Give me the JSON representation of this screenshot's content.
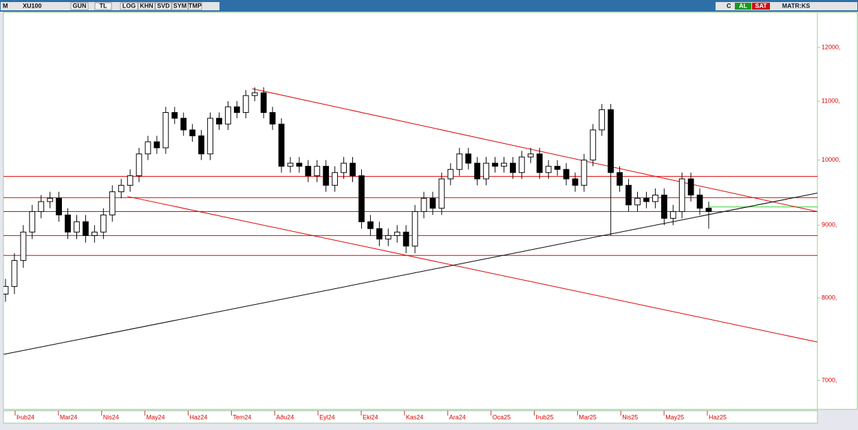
{
  "toolbar": {
    "menu": "M",
    "symbol": "XU100",
    "buttons": [
      "GUN",
      "TL",
      "LOG",
      "KHN",
      "SVD",
      "SYM",
      "TMP"
    ],
    "refresh": "C",
    "buy": "AL",
    "sell": "SAT",
    "brand": "MATR:KS"
  },
  "chart_data": {
    "type": "candlestick",
    "x_labels": [
      "Þub24",
      "Mar24",
      "Nis24",
      "May24",
      "Haz24",
      "Tem24",
      "Aðu24",
      "Eyl24",
      "Eki24",
      "Kas24",
      "Ara24",
      "Oca25",
      "Þub25",
      "Mar25",
      "Nis25",
      "May25",
      "Haz25"
    ],
    "open": [
      8050,
      8150,
      8500,
      8900,
      9200,
      9350,
      9400,
      9150,
      8900,
      9050,
      8850,
      8900,
      9150,
      9500,
      9600,
      9750,
      10100,
      10300,
      10200,
      10800,
      10700,
      10500,
      10400,
      10100,
      10700,
      10600,
      10900,
      10800,
      11100,
      11150,
      10800,
      10600,
      9900,
      9950,
      9900,
      9750,
      9900,
      9600,
      9800,
      9950,
      9750,
      9050,
      8950,
      8800,
      8850,
      8900,
      8700,
      9200,
      9400,
      9250,
      9700,
      9850,
      10100,
      9950,
      9700,
      9950,
      9900,
      9950,
      9800,
      10050,
      10100,
      9800,
      9900,
      9850,
      9700,
      9600,
      10000,
      10500,
      10850,
      9800,
      9600,
      9300,
      9400,
      9350,
      9450,
      9100,
      9200,
      9700,
      9450,
      9250
    ],
    "high": [
      8250,
      8600,
      9000,
      9300,
      9450,
      9500,
      9500,
      9250,
      9150,
      9150,
      9000,
      9250,
      9600,
      9700,
      9850,
      10200,
      10400,
      10400,
      10900,
      10900,
      10800,
      10600,
      10500,
      10800,
      10800,
      11000,
      11000,
      11200,
      11250,
      11250,
      10900,
      10700,
      10050,
      10050,
      10000,
      10000,
      10000,
      9900,
      10050,
      10050,
      9850,
      9150,
      9050,
      8950,
      9000,
      9000,
      9300,
      9500,
      9500,
      9800,
      9950,
      10200,
      10200,
      10050,
      10050,
      10050,
      10050,
      10050,
      10150,
      10200,
      10200,
      10000,
      10000,
      9950,
      9800,
      10100,
      10600,
      10950,
      10950,
      9900,
      9700,
      9500,
      9500,
      9550,
      9550,
      9300,
      9800,
      9800,
      9550,
      9350
    ],
    "low": [
      7950,
      8050,
      8400,
      8800,
      9100,
      9250,
      9050,
      8800,
      8800,
      8750,
      8750,
      8800,
      9050,
      9400,
      9500,
      9650,
      10000,
      10100,
      10100,
      10600,
      10400,
      10300,
      10000,
      10000,
      10500,
      10500,
      10700,
      10700,
      11000,
      10700,
      10500,
      9800,
      9800,
      9800,
      9650,
      9650,
      9500,
      9500,
      9700,
      9650,
      8950,
      8850,
      8700,
      8700,
      8750,
      8600,
      8600,
      9100,
      9150,
      9150,
      9600,
      9750,
      9850,
      9600,
      9600,
      9800,
      9800,
      9700,
      9700,
      9950,
      9700,
      9700,
      9750,
      9600,
      9500,
      9500,
      9900,
      10400,
      8850,
      9500,
      9200,
      9200,
      9250,
      9250,
      9000,
      9000,
      9100,
      9350,
      9150,
      8950
    ],
    "close": [
      8150,
      8500,
      8900,
      9200,
      9350,
      9400,
      9150,
      8900,
      9050,
      8850,
      8900,
      9150,
      9500,
      9600,
      9750,
      10100,
      10300,
      10200,
      10800,
      10700,
      10500,
      10400,
      10100,
      10700,
      10600,
      10900,
      10800,
      11100,
      11150,
      10800,
      10600,
      9900,
      9950,
      9900,
      9750,
      9900,
      9600,
      9800,
      9950,
      9750,
      9050,
      8950,
      8800,
      8850,
      8900,
      8700,
      9200,
      9400,
      9250,
      9700,
      9850,
      10100,
      9950,
      9700,
      9950,
      9900,
      9950,
      9800,
      10050,
      10100,
      9800,
      9900,
      9850,
      9700,
      9600,
      10000,
      10500,
      10850,
      9800,
      9600,
      9300,
      9400,
      9350,
      9450,
      9100,
      9200,
      9700,
      9450,
      9250,
      9200
    ],
    "ylim": [
      6680,
      12700
    ],
    "yscale": "log",
    "yticks": [
      {
        "value": 7000,
        "label": "7000,"
      },
      {
        "value": 8000,
        "label": "8000,"
      },
      {
        "value": 9000,
        "label": "9000,"
      },
      {
        "value": 10000,
        "label": "10000,"
      },
      {
        "value": 11000,
        "label": "11000,"
      },
      {
        "value": 12000,
        "label": "12000,"
      }
    ],
    "hlines": [
      {
        "value": 9740,
        "color": "#dd0000"
      },
      {
        "value": 9410,
        "color": "#dd0000"
      },
      {
        "value": 9200,
        "color": "#dd0000"
      },
      {
        "value": 8850,
        "color": "#dd0000"
      },
      {
        "value": 8570,
        "color": "#dd0000"
      }
    ],
    "last_line": {
      "value": 9270,
      "color": "#33cc33"
    },
    "trendlines": [
      {
        "points": [
          [
            27.7,
            11225
          ],
          [
            91.2,
            9200
          ]
        ],
        "color": "#dd0000"
      },
      {
        "points": [
          [
            13.7,
            9428
          ],
          [
            91.2,
            7449
          ]
        ],
        "color": "#dd0000"
      },
      {
        "points": [
          [
            -0.2,
            7302
          ],
          [
            91.2,
            9480
          ]
        ],
        "color": "#000000"
      }
    ],
    "up_color": "#ffffff",
    "down_color": "#000000"
  }
}
